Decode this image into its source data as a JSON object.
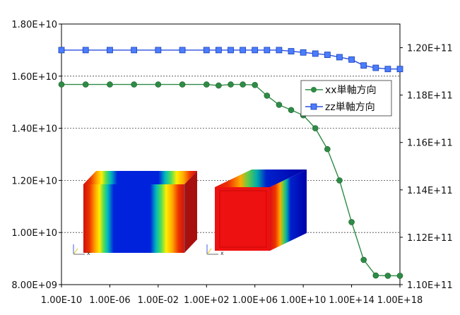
{
  "chart_data": {
    "type": "line",
    "x_scale": "log",
    "x": [
      "1.00E-10",
      "1.00E-08",
      "1.00E-06",
      "1.00E-04",
      "1.00E-02",
      "1.00E+00",
      "1.00E+02",
      "1.00E+03",
      "1.00E+04",
      "1.00E+05",
      "1.00E+06",
      "1.00E+07",
      "1.00E+08",
      "1.00E+09",
      "1.00E+10",
      "1.00E+11",
      "1.00E+12",
      "1.00E+13",
      "1.00E+14",
      "1.00E+15",
      "1.00E+16",
      "1.00E+17",
      "1.00E+18"
    ],
    "x_ticks": [
      "1.00E-10",
      "1.00E-06",
      "1.00E-02",
      "1.00E+02",
      "1.00E+06",
      "1.00E+10",
      "1.00E+14",
      "1.00E+18"
    ],
    "y_left_ticks": [
      "8.00E+09",
      "1.00E+10",
      "1.20E+10",
      "1.40E+10",
      "1.60E+10",
      "1.80E+10"
    ],
    "y_right_ticks": [
      "1.10E+11",
      "1.12E+11",
      "1.14E+11",
      "1.16E+11",
      "1.18E+11",
      "1.20E+11"
    ],
    "ylim_left": [
      8000000000.0,
      18000000000.0
    ],
    "ylim_right": [
      110000000000.0,
      121000000000.0
    ],
    "grid": "horizontal dotted",
    "legend_placement": "right",
    "series": [
      {
        "name": "xx単軸方向",
        "axis": "left",
        "color": "#2e8b45",
        "marker": "circle",
        "values": [
          15680000000.0,
          15680000000.0,
          15680000000.0,
          15680000000.0,
          15680000000.0,
          15680000000.0,
          15680000000.0,
          15640000000.0,
          15680000000.0,
          15680000000.0,
          15660000000.0,
          15250000000.0,
          14900000000.0,
          14700000000.0,
          14500000000.0,
          14000000000.0,
          13200000000.0,
          12000000000.0,
          10400000000.0,
          8950000000.0,
          8350000000.0,
          8340000000.0,
          8340000000.0
        ]
      },
      {
        "name": "zz単軸方向",
        "axis": "right",
        "color": "#2a4fe0",
        "marker": "square",
        "values": [
          119900000000.0,
          119900000000.0,
          119900000000.0,
          119900000000.0,
          119900000000.0,
          119900000000.0,
          119900000000.0,
          119900000000.0,
          119900000000.0,
          119900000000.0,
          119900000000.0,
          119900000000.0,
          119900000000.0,
          119850000000.0,
          119800000000.0,
          119750000000.0,
          119700000000.0,
          119600000000.0,
          119500000000.0,
          119250000000.0,
          119150000000.0,
          119100000000.0,
          119100000000.0
        ]
      }
    ]
  },
  "insets": [
    {
      "name": "block-xx",
      "axis_x_label": "x",
      "colors": [
        "#cc1111",
        "#ee3300",
        "#ffaa00",
        "#ffee00",
        "#55dd55",
        "#00bbbb",
        "#0022dd",
        "#0000aa"
      ]
    },
    {
      "name": "block-zz",
      "axis_x_label": "x",
      "colors": [
        "#dd1111",
        "#ee3300",
        "#ffaa00",
        "#66cc44",
        "#00aaaa",
        "#0022cc",
        "#0000aa"
      ]
    }
  ]
}
